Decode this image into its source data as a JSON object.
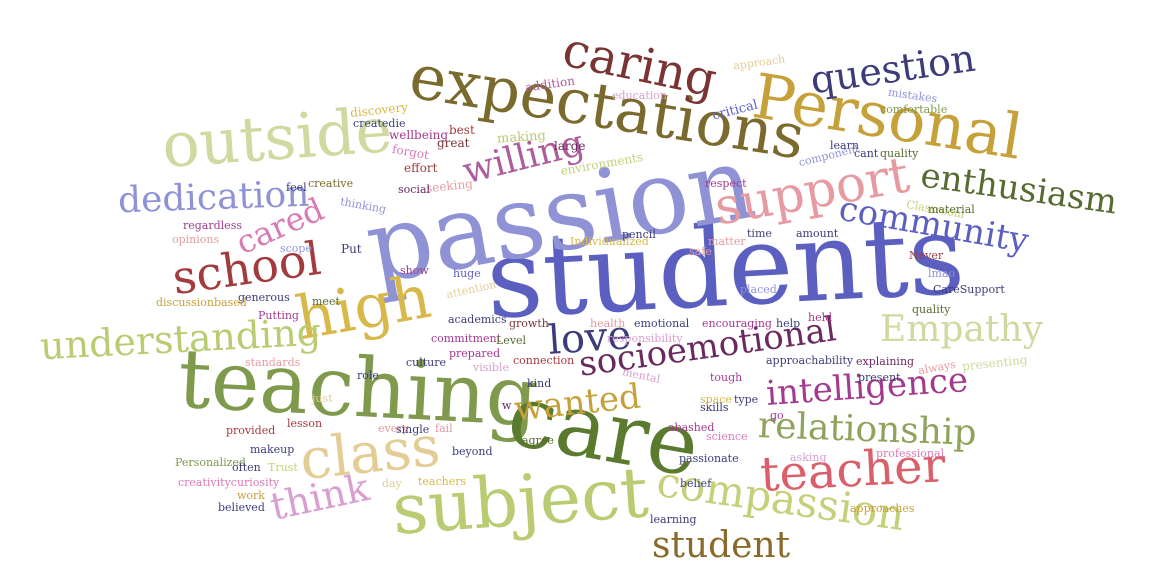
{
  "words": [
    {
      "text": "students",
      "color": "#5b5fc0"
    },
    {
      "text": "passion",
      "color": "#8f93d6"
    },
    {
      "text": "teaching",
      "color": "#7f9a4c"
    },
    {
      "text": "care",
      "color": "#5a7a2e"
    },
    {
      "text": "subject",
      "color": "#b9cc72"
    },
    {
      "text": "expectations",
      "color": "#7a6a2d"
    },
    {
      "text": "Personal",
      "color": "#c6a13a"
    },
    {
      "text": "outside",
      "color": "#cfd9a0"
    },
    {
      "text": "caring",
      "color": "#7a3434"
    },
    {
      "text": "question",
      "color": "#3c3c7a"
    },
    {
      "text": "high",
      "color": "#d9b84a"
    },
    {
      "text": "class",
      "color": "#e3cd95"
    },
    {
      "text": "school",
      "color": "#a33a3e"
    },
    {
      "text": "support",
      "color": "#e79aa2"
    },
    {
      "text": "enthusiasm",
      "color": "#556b2f"
    },
    {
      "text": "dedication",
      "color": "#8f93d6"
    },
    {
      "text": "willing",
      "color": "#ad5c9c"
    },
    {
      "text": "community",
      "color": "#5b5fc0"
    },
    {
      "text": "teacher",
      "color": "#d9606a"
    },
    {
      "text": "compassion",
      "color": "#c6cf7a"
    },
    {
      "text": "student",
      "color": "#8a6a2a"
    },
    {
      "text": "understanding",
      "color": "#b9cc72"
    },
    {
      "text": "love",
      "color": "#3c3c7a"
    },
    {
      "text": "Empathy",
      "color": "#cfd9a0"
    },
    {
      "text": "socioemotional",
      "color": "#6b2a5e"
    },
    {
      "text": "intelligence",
      "color": "#a33a8e"
    },
    {
      "text": "relationship",
      "color": "#8fa35c"
    },
    {
      "text": "wanted",
      "color": "#c6a13a"
    },
    {
      "text": "think",
      "color": "#d89fd0"
    },
    {
      "text": "cared",
      "color": "#d97ab4"
    },
    {
      "text": "approach",
      "color": "#e3cd95"
    },
    {
      "text": "addition",
      "color": "#ad5c9c"
    },
    {
      "text": "education",
      "color": "#d89fd0"
    },
    {
      "text": "critical",
      "color": "#5b5fc0"
    },
    {
      "text": "mistakes",
      "color": "#8f93d6"
    },
    {
      "text": "discovery",
      "color": "#d9b84a"
    },
    {
      "text": "createdie",
      "color": "#3c3c7a"
    },
    {
      "text": "wellbeing",
      "color": "#a33a8e"
    },
    {
      "text": "best",
      "color": "#a33a3e"
    },
    {
      "text": "making",
      "color": "#b9cc72"
    },
    {
      "text": "comfortable",
      "color": "#7f9a4c"
    },
    {
      "text": "quality",
      "color": "#556b2f"
    },
    {
      "text": "learn",
      "color": "#3c3c7a"
    },
    {
      "text": "cant",
      "color": "#3c3c7a"
    },
    {
      "text": "forgot",
      "color": "#d97ab4"
    },
    {
      "text": "great",
      "color": "#7a3434"
    },
    {
      "text": "large",
      "color": "#6b2a5e"
    },
    {
      "text": "component",
      "color": "#8f93d6"
    },
    {
      "text": "effort",
      "color": "#a33a3e"
    },
    {
      "text": "seeking",
      "color": "#e79aa2"
    },
    {
      "text": "environments",
      "color": "#c6cf7a"
    },
    {
      "text": "feel",
      "color": "#3c3c7a"
    },
    {
      "text": "creative",
      "color": "#7a6a2d"
    },
    {
      "text": "social",
      "color": "#6b2a5e"
    },
    {
      "text": "respect",
      "color": "#a33a8e"
    },
    {
      "text": "Classroom",
      "color": "#c6cf7a"
    },
    {
      "text": "material",
      "color": "#556b2f"
    },
    {
      "text": "thinking",
      "color": "#8f93d6"
    },
    {
      "text": "regardless",
      "color": "#a33a8e"
    },
    {
      "text": "opinions",
      "color": "#e79aa2"
    },
    {
      "text": "scope",
      "color": "#8f93d6"
    },
    {
      "text": "Put",
      "color": "#3c3c7a"
    },
    {
      "text": "Individualized",
      "color": "#d9b84a"
    },
    {
      "text": "pencil",
      "color": "#3c3c7a"
    },
    {
      "text": "matter",
      "color": "#e79aa2"
    },
    {
      "text": "time",
      "color": "#3c3c7a"
    },
    {
      "text": "amount",
      "color": "#3c3c7a"
    },
    {
      "text": "safe",
      "color": "#e79aa2"
    },
    {
      "text": "Never",
      "color": "#a33a3e"
    },
    {
      "text": "show",
      "color": "#a33a8e"
    },
    {
      "text": "huge",
      "color": "#5b5fc0"
    },
    {
      "text": "attention",
      "color": "#e3cd95"
    },
    {
      "text": "lmao",
      "color": "#8f93d6"
    },
    {
      "text": "CareSupport",
      "color": "#3c3c7a"
    },
    {
      "text": "placed",
      "color": "#8f93d6"
    },
    {
      "text": "generous",
      "color": "#3c3c7a"
    },
    {
      "text": "meet",
      "color": "#556b2f"
    },
    {
      "text": "discussionbased",
      "color": "#c6a13a"
    },
    {
      "text": "academics",
      "color": "#3c3c7a"
    },
    {
      "text": "Putting",
      "color": "#a33a8e"
    },
    {
      "text": "growth",
      "color": "#7a3434"
    },
    {
      "text": "health",
      "color": "#e79aa2"
    },
    {
      "text": "emotional",
      "color": "#3c3c7a"
    },
    {
      "text": "encouraging",
      "color": "#a33a8e"
    },
    {
      "text": "held",
      "color": "#a33a8e"
    },
    {
      "text": "help",
      "color": "#3c3c7a"
    },
    {
      "text": "quality",
      "color": "#556b2f"
    },
    {
      "text": "commitment",
      "color": "#a33a8e"
    },
    {
      "text": "Level",
      "color": "#556b2f"
    },
    {
      "text": "responsibility",
      "color": "#d89fd0"
    },
    {
      "text": "explaining",
      "color": "#6b2a5e"
    },
    {
      "text": "standards",
      "color": "#e79aa2"
    },
    {
      "text": "culture",
      "color": "#3c3c7a"
    },
    {
      "text": "prepared",
      "color": "#a33a8e"
    },
    {
      "text": "connection",
      "color": "#a33a3e"
    },
    {
      "text": "approachability",
      "color": "#3c3c7a"
    },
    {
      "text": "present",
      "color": "#3c3c7a"
    },
    {
      "text": "always",
      "color": "#e79aa2"
    },
    {
      "text": "presenting",
      "color": "#cfd9a0"
    },
    {
      "text": "role",
      "color": "#3c3c7a"
    },
    {
      "text": "visible",
      "color": "#d89fd0"
    },
    {
      "text": "mental",
      "color": "#d89fd0"
    },
    {
      "text": "tough",
      "color": "#a33a8e"
    },
    {
      "text": "kind",
      "color": "#3c3c7a"
    },
    {
      "text": "just",
      "color": "#e3cd95"
    },
    {
      "text": "w",
      "color": "#6b2a5e"
    },
    {
      "text": "skills",
      "color": "#3c3c7a"
    },
    {
      "text": "space",
      "color": "#d9b84a"
    },
    {
      "text": "type",
      "color": "#3c3c7a"
    },
    {
      "text": "go",
      "color": "#a33a8e"
    },
    {
      "text": "provided",
      "color": "#a33a3e"
    },
    {
      "text": "lesson",
      "color": "#a33a3e"
    },
    {
      "text": "every",
      "color": "#e79aa2"
    },
    {
      "text": "single",
      "color": "#3c3c7a"
    },
    {
      "text": "fail",
      "color": "#e79aa2"
    },
    {
      "text": "agree",
      "color": "#556b2f"
    },
    {
      "text": "abashed",
      "color": "#a33a8e"
    },
    {
      "text": "science",
      "color": "#d97ab4"
    },
    {
      "text": "professional",
      "color": "#d97ab4"
    },
    {
      "text": "Personalized",
      "color": "#7f9a4c"
    },
    {
      "text": "makeup",
      "color": "#3c3c7a"
    },
    {
      "text": "beyond",
      "color": "#3c3c7a"
    },
    {
      "text": "passionate",
      "color": "#3c3c7a"
    },
    {
      "text": "asking",
      "color": "#d89fd0"
    },
    {
      "text": "often",
      "color": "#3c3c7a"
    },
    {
      "text": "Trust",
      "color": "#c6cf7a"
    },
    {
      "text": "creativitycuriosity",
      "color": "#d97ab4"
    },
    {
      "text": "day",
      "color": "#e3cd95"
    },
    {
      "text": "teachers",
      "color": "#d9b84a"
    },
    {
      "text": "belief",
      "color": "#3c3c7a"
    },
    {
      "text": "work",
      "color": "#c6a13a"
    },
    {
      "text": "believed",
      "color": "#3c3c7a"
    },
    {
      "text": "learning",
      "color": "#3c3c7a"
    },
    {
      "text": "approaches",
      "color": "#c6a13a"
    }
  ]
}
